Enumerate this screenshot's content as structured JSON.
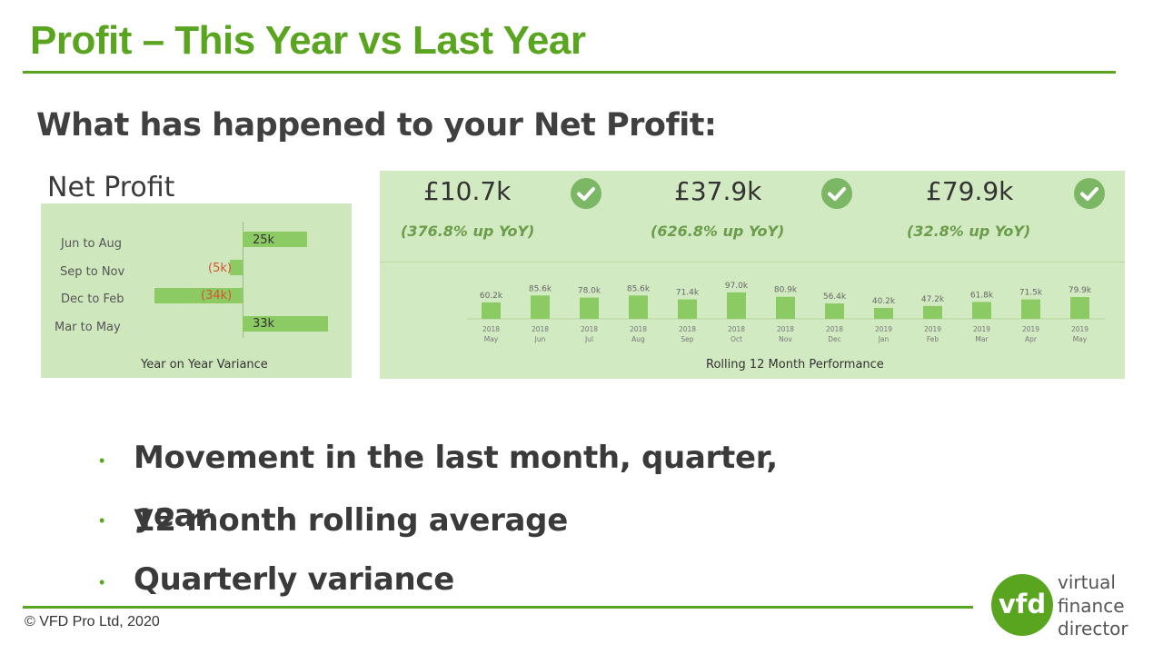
{
  "header": {
    "title": "Profit – This Year vs Last Year",
    "subtitle": "What has happened to your Net Profit:"
  },
  "dashboard": {
    "title": "Net Profit",
    "variance": {
      "caption": "Year on Year Variance",
      "rows": [
        {
          "label": "Jun to Aug",
          "value_label": "25k",
          "value": 25
        },
        {
          "label": "Sep to Nov",
          "value_label": "(5k)",
          "value": -5
        },
        {
          "label": "Dec to Feb",
          "value_label": "(34k)",
          "value": -34
        },
        {
          "label": "Mar to May",
          "value_label": "33k",
          "value": 33
        }
      ]
    },
    "kpis": [
      {
        "value": "£10.7k",
        "yoy": "(376.8% up YoY)"
      },
      {
        "value": "£37.9k",
        "yoy": "(626.8% up YoY)"
      },
      {
        "value": "£79.9k",
        "yoy": "(32.8% up YoY)"
      }
    ],
    "rolling_caption": "Rolling 12 Month Performance"
  },
  "chart_data": {
    "type": "bar",
    "xlabel": "Rolling 12 Month Performance",
    "categories": [
      {
        "year": "2018",
        "month": "May"
      },
      {
        "year": "2018",
        "month": "Jun"
      },
      {
        "year": "2018",
        "month": "Jul"
      },
      {
        "year": "2018",
        "month": "Aug"
      },
      {
        "year": "2018",
        "month": "Sep"
      },
      {
        "year": "2018",
        "month": "Oct"
      },
      {
        "year": "2018",
        "month": "Nov"
      },
      {
        "year": "2018",
        "month": "Dec"
      },
      {
        "year": "2019",
        "month": "Jan"
      },
      {
        "year": "2019",
        "month": "Feb"
      },
      {
        "year": "2019",
        "month": "Mar"
      },
      {
        "year": "2019",
        "month": "Apr"
      },
      {
        "year": "2019",
        "month": "May"
      }
    ],
    "values": [
      60.2,
      85.6,
      78.0,
      85.6,
      71.4,
      97.0,
      80.9,
      56.4,
      40.2,
      47.2,
      61.8,
      71.5,
      79.9
    ],
    "value_labels": [
      "60.2k",
      "85.6k",
      "78.0k",
      "85.6k",
      "71.4k",
      "97.0k",
      "80.9k",
      "56.4k",
      "40.2k",
      "47.2k",
      "61.8k",
      "71.5k",
      "79.9k"
    ],
    "colors": {
      "bar": "#8ccb64",
      "label": "#666666"
    }
  },
  "bullets": [
    "Movement in the last month, quarter,",
    "year",
    "12 month rolling average",
    "Quarterly variance"
  ],
  "footer": {
    "copyright": "© VFD Pro Ltd, 2020"
  },
  "logo": {
    "mark": "vfd",
    "line1": "virtual",
    "line2": "finance",
    "line3": "director"
  },
  "colors": {
    "brand_green": "#5aa51f",
    "negative": "#d9532b"
  }
}
